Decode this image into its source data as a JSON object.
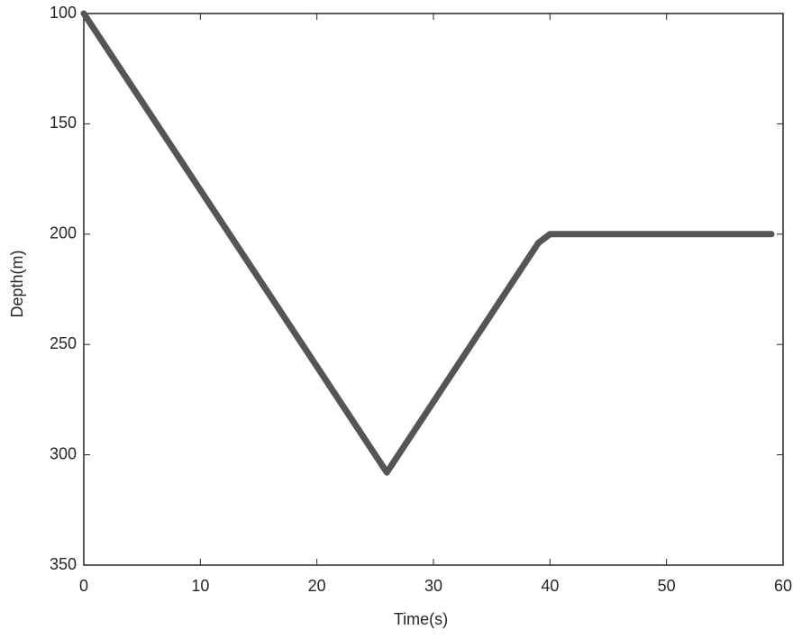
{
  "chart_data": {
    "type": "line",
    "x_label": "Time(s)",
    "y_label": "Depth(m)",
    "x": [
      0,
      26,
      39,
      40,
      59
    ],
    "values": [
      100,
      308,
      204,
      200,
      200
    ],
    "color": "#555555",
    "xlim": [
      0,
      60
    ],
    "xticks": [
      0,
      10,
      20,
      30,
      40,
      50,
      60
    ],
    "ylim": [
      100,
      350
    ],
    "yticks": [
      100,
      150,
      200,
      250,
      300,
      350
    ],
    "y_reversed": true,
    "grid": false
  }
}
